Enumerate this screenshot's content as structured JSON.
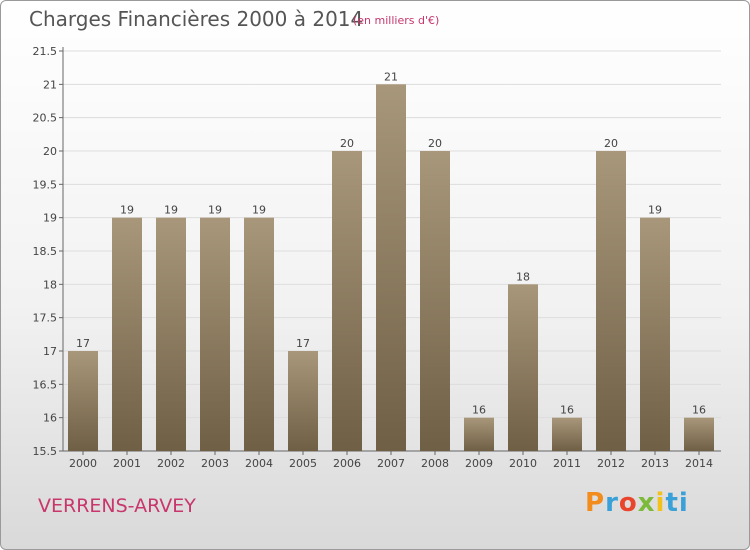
{
  "header": {
    "title": "Charges Financières 2000 à 2014",
    "subtitle": "(en milliers d'€)"
  },
  "footer": {
    "place": "VERRENS-ARVEY",
    "logo": "Proxiti"
  },
  "colors": {
    "bar_top": "#a8977a",
    "bar_bottom": "#6f5f45",
    "grid": "#dddddd",
    "title": "#555555",
    "accent": "#c8366c"
  },
  "chart_data": {
    "type": "bar",
    "title": "Charges Financières 2000 à 2014",
    "subtitle": "(en milliers d'€)",
    "categories": [
      "2000",
      "2001",
      "2002",
      "2003",
      "2004",
      "2005",
      "2006",
      "2007",
      "2008",
      "2009",
      "2010",
      "2011",
      "2012",
      "2013",
      "2014"
    ],
    "values": [
      17,
      19,
      19,
      19,
      19,
      17,
      20,
      21,
      20,
      16,
      18,
      16,
      20,
      19,
      16
    ],
    "value_labels": [
      "17",
      "19",
      "19",
      "19",
      "19",
      "17",
      "20",
      "21",
      "20",
      "16",
      "18",
      "16",
      "20",
      "19",
      "16"
    ],
    "yticks": [
      "15.5",
      "16",
      "16.5",
      "17",
      "17.5",
      "18",
      "18.5",
      "19",
      "19.5",
      "20",
      "20.5",
      "21",
      "21.5"
    ],
    "ylim": [
      15.5,
      21.5
    ],
    "grid": true,
    "legend": "none"
  }
}
